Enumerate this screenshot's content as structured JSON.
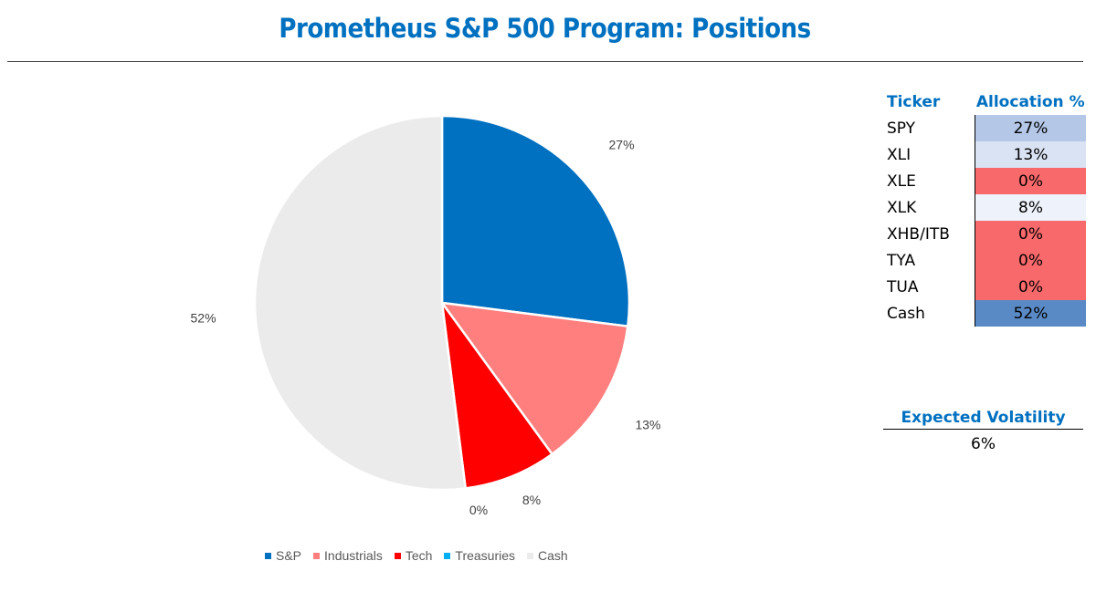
{
  "title": "Prometheus S&P 500 Program: Positions",
  "chart_data": {
    "type": "pie",
    "categories": [
      "S&P",
      "Industrials",
      "Tech",
      "Treasuries",
      "Cash"
    ],
    "values": [
      27,
      13,
      8,
      0,
      52
    ],
    "data_labels": [
      "27%",
      "13%",
      "8%",
      "0%",
      "52%"
    ],
    "colors": [
      "#0070C0",
      "#FF7F7F",
      "#FF0000",
      "#00B0F0",
      "#EBEBEB"
    ],
    "legend_position": "bottom"
  },
  "allocation_table": {
    "headers": {
      "ticker": "Ticker",
      "allocation": "Allocation %"
    },
    "rows": [
      {
        "ticker": "SPY",
        "allocation": "27%",
        "color": "#B4C7E7"
      },
      {
        "ticker": "XLI",
        "allocation": "13%",
        "color": "#DAE3F3"
      },
      {
        "ticker": "XLE",
        "allocation": "0%",
        "color": "#F8696B"
      },
      {
        "ticker": "XLK",
        "allocation": "8%",
        "color": "#EEF2FA"
      },
      {
        "ticker": "XHB/ITB",
        "allocation": "0%",
        "color": "#F8696B"
      },
      {
        "ticker": "TYA",
        "allocation": "0%",
        "color": "#F8696B"
      },
      {
        "ticker": "TUA",
        "allocation": "0%",
        "color": "#F8696B"
      },
      {
        "ticker": "Cash",
        "allocation": "52%",
        "color": "#5A8AC6"
      }
    ]
  },
  "expected_volatility": {
    "label": "Expected Volatility",
    "value": "6%"
  }
}
